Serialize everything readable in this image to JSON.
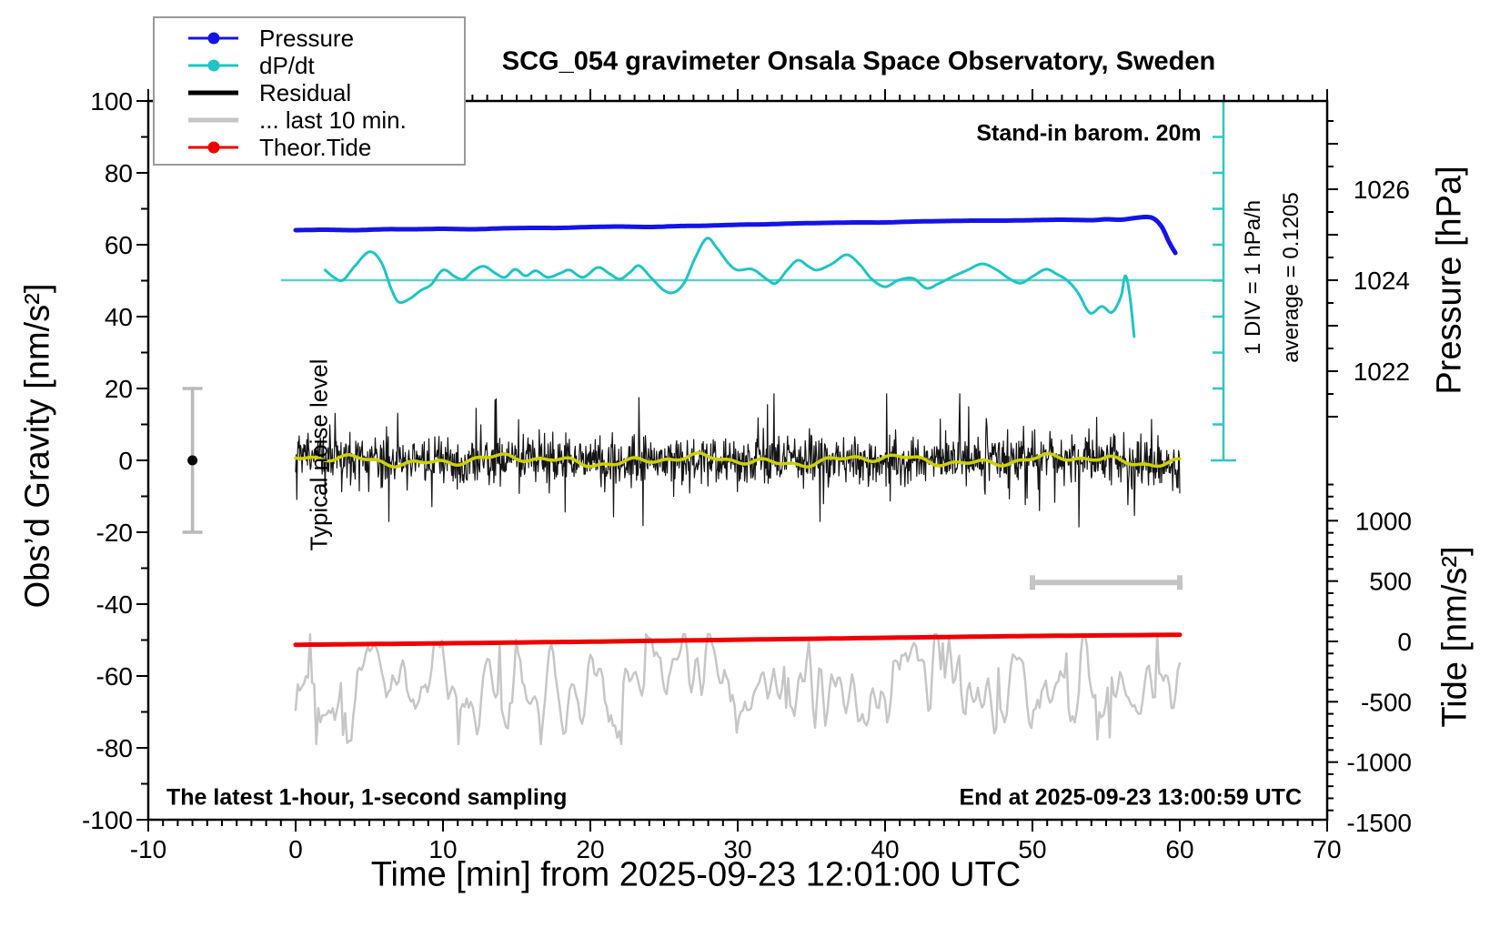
{
  "title": "SCG_054 gravimeter Onsala Space Observatory, Sweden",
  "legend": {
    "items": [
      {
        "label": "Pressure",
        "color": "#1414e6",
        "marker": true,
        "weight": "thin"
      },
      {
        "label": "dP/dt",
        "color": "#1fc4c4",
        "marker": true,
        "weight": "thin"
      },
      {
        "label": "Residual",
        "color": "#000000",
        "marker": false,
        "weight": "thick"
      },
      {
        "label": "... last 10 min.",
        "color": "#c6c6c6",
        "marker": false,
        "weight": "thick"
      },
      {
        "label": "Theor.Tide",
        "color": "#ee0000",
        "marker": true,
        "weight": "thin"
      }
    ]
  },
  "annotations": {
    "standin": "Stand-in barom. 20m",
    "sampling": "The latest 1-hour, 1-second sampling",
    "end": "End at 2025-09-23 13:00:59 UTC",
    "div_note": "1 DIV = 1 hPa/h",
    "average_note": "average = 0.1205",
    "noise_label": "Typical noise level"
  },
  "chart_data": {
    "type": "line",
    "title": "SCG_054 gravimeter Onsala Space Observatory, Sweden",
    "axes": {
      "x": {
        "title": "Time [min] from 2025-09-23 12:01:00 UTC",
        "min": -10,
        "max": 70,
        "major_step": 10,
        "minor_step": 1,
        "labels": [
          -10,
          0,
          10,
          20,
          30,
          40,
          50,
          60,
          70
        ]
      },
      "gravity": {
        "title": "Obs’d Gravity [nm/s²]",
        "min": -100,
        "max": 100,
        "major_step": 20,
        "minor_step": 10,
        "labels": [
          100,
          80,
          60,
          40,
          20,
          0,
          -20,
          -40,
          -60,
          -80,
          -100
        ]
      },
      "pressure": {
        "title": "Pressure [hPa]",
        "labels": [
          1026,
          1024,
          1022
        ],
        "major_step": 1,
        "minor_step": 0.5,
        "tick_min": 1021,
        "tick_max": 1027.5
      },
      "tide": {
        "title": "Tide [nm/s²]",
        "labels": [
          1000,
          500,
          0,
          -500,
          -1000,
          -1500
        ],
        "major_step": 500,
        "minor_step": 100,
        "tick_min": -1500,
        "tick_max": 1400
      },
      "dpdt": {
        "div_equals": "1 hPa/h",
        "average": 0.1205,
        "divisions": 10
      }
    },
    "grid": false,
    "legend_position": "top-left",
    "noise_bar": {
      "t": -7,
      "lo": -20,
      "hi": 20,
      "dot": 0
    },
    "span_bar": {
      "t0": 50,
      "t1": 60,
      "gravity": -34
    },
    "ref_line": {
      "axis": "dpdt",
      "value": 0,
      "t0": -1,
      "t_end_at_ruler": true,
      "color": "#5fcfcb"
    },
    "ruler": {
      "t": 63,
      "color": "#2fc6c6",
      "divisions": 10
    },
    "series": [
      {
        "name": "... last 10 min.",
        "axis": "tide",
        "color": "#c6c6c6",
        "width": 2.5,
        "type": "noise",
        "noise": {
          "n": 430,
          "seed": 99,
          "sigma": 200,
          "center": -370,
          "smooth": 2,
          "spike_prob": 0.05,
          "spike_scale": 1.6,
          "clamp": [
            -850,
            60
          ],
          "t0": 0,
          "t1": 60
        }
      },
      {
        "name": "Theor.Tide",
        "axis": "tide",
        "color": "#ee0000",
        "width": 5,
        "type": "line",
        "points": [
          [
            0,
            -28
          ],
          [
            5,
            -22
          ],
          [
            10,
            -16
          ],
          [
            15,
            -9
          ],
          [
            20,
            -2
          ],
          [
            25,
            6
          ],
          [
            30,
            14
          ],
          [
            35,
            22
          ],
          [
            40,
            30
          ],
          [
            45,
            38
          ],
          [
            50,
            45
          ],
          [
            55,
            50
          ],
          [
            60,
            55
          ]
        ]
      },
      {
        "name": "Residual",
        "axis": "gravity",
        "color": "#141414",
        "width": 1.2,
        "type": "noise",
        "noise": {
          "n": 1500,
          "seed": 12345,
          "sigma": 3.3,
          "center": 0,
          "smooth": 0,
          "spike_prob": 0.06,
          "spike_scale": 2.6,
          "clamp": [
            -18.5,
            18.5
          ],
          "t0": 0,
          "t1": 60
        }
      },
      {
        "name": "Residual smoothed",
        "axis": "gravity",
        "color": "#cdd100",
        "width": 3.5,
        "type": "sines",
        "t0": 0,
        "t1": 60,
        "sines": [
          [
            0.9,
            0.5,
            0.6
          ],
          [
            0.7,
            1.35,
            2.2
          ],
          [
            0.5,
            2.9,
            4.1
          ]
        ]
      },
      {
        "name": "dP/dt",
        "axis": "dpdt",
        "color": "#1fc4c4",
        "width": 3,
        "type": "line",
        "points": [
          [
            2,
            0.28
          ],
          [
            2.6,
            0.08
          ],
          [
            3.2,
            0.0
          ],
          [
            4,
            0.38
          ],
          [
            5,
            0.78
          ],
          [
            5.8,
            0.5
          ],
          [
            6.5,
            -0.25
          ],
          [
            7,
            -0.6
          ],
          [
            7.7,
            -0.52
          ],
          [
            8.5,
            -0.28
          ],
          [
            9.2,
            -0.12
          ],
          [
            10,
            0.28
          ],
          [
            10.8,
            0.1
          ],
          [
            11.4,
            0.03
          ],
          [
            12.1,
            0.27
          ],
          [
            12.8,
            0.38
          ],
          [
            13.6,
            0.18
          ],
          [
            14.2,
            0.08
          ],
          [
            14.9,
            0.3
          ],
          [
            15.6,
            0.12
          ],
          [
            16.3,
            0.26
          ],
          [
            17.1,
            0.08
          ],
          [
            18,
            0.2
          ],
          [
            18.6,
            0.28
          ],
          [
            19.5,
            0.08
          ],
          [
            20.5,
            0.35
          ],
          [
            21.3,
            0.18
          ],
          [
            22,
            0.03
          ],
          [
            22.7,
            0.22
          ],
          [
            23.3,
            0.4
          ],
          [
            24.1,
            0.08
          ],
          [
            25,
            -0.28
          ],
          [
            25.7,
            -0.33
          ],
          [
            26.4,
            -0.05
          ],
          [
            27.1,
            0.6
          ],
          [
            27.9,
            1.15
          ],
          [
            28.6,
            0.88
          ],
          [
            29.4,
            0.45
          ],
          [
            30,
            0.28
          ],
          [
            31,
            0.3
          ],
          [
            32,
            0.02
          ],
          [
            32.6,
            -0.08
          ],
          [
            33.4,
            0.3
          ],
          [
            34.1,
            0.55
          ],
          [
            34.8,
            0.38
          ],
          [
            35.4,
            0.28
          ],
          [
            36.4,
            0.45
          ],
          [
            37.4,
            0.7
          ],
          [
            38.3,
            0.42
          ],
          [
            39.1,
            0.03
          ],
          [
            40,
            -0.18
          ],
          [
            40.9,
            0.0
          ],
          [
            41.9,
            0.05
          ],
          [
            42.8,
            -0.22
          ],
          [
            43.6,
            -0.1
          ],
          [
            44.6,
            0.1
          ],
          [
            45.6,
            0.28
          ],
          [
            46.6,
            0.45
          ],
          [
            47.6,
            0.28
          ],
          [
            48.4,
            0.05
          ],
          [
            49.2,
            -0.08
          ],
          [
            50,
            0.1
          ],
          [
            50.9,
            0.3
          ],
          [
            51.6,
            0.18
          ],
          [
            52.4,
            -0.02
          ],
          [
            53.1,
            -0.35
          ],
          [
            53.9,
            -0.9
          ],
          [
            54.7,
            -0.72
          ],
          [
            55.4,
            -0.88
          ],
          [
            56,
            -0.45
          ],
          [
            56.3,
            0.12
          ],
          [
            56.6,
            -0.4
          ],
          [
            56.9,
            -1.55
          ]
        ]
      },
      {
        "name": "Pressure",
        "axis": "pressure",
        "color": "#1414e6",
        "width": 5,
        "type": "line",
        "points": [
          [
            0,
            1025.1
          ],
          [
            2,
            1025.11
          ],
          [
            4,
            1025.1
          ],
          [
            6,
            1025.12
          ],
          [
            8,
            1025.12
          ],
          [
            10,
            1025.13
          ],
          [
            12,
            1025.12
          ],
          [
            14,
            1025.14
          ],
          [
            16,
            1025.15
          ],
          [
            18,
            1025.15
          ],
          [
            20,
            1025.17
          ],
          [
            22,
            1025.18
          ],
          [
            24,
            1025.17
          ],
          [
            26,
            1025.19
          ],
          [
            28,
            1025.2
          ],
          [
            30,
            1025.22
          ],
          [
            32,
            1025.23
          ],
          [
            34,
            1025.25
          ],
          [
            36,
            1025.26
          ],
          [
            38,
            1025.27
          ],
          [
            40,
            1025.27
          ],
          [
            42,
            1025.29
          ],
          [
            44,
            1025.3
          ],
          [
            46,
            1025.31
          ],
          [
            48,
            1025.31
          ],
          [
            50,
            1025.32
          ],
          [
            52,
            1025.33
          ],
          [
            54,
            1025.32
          ],
          [
            55,
            1025.34
          ],
          [
            56,
            1025.33
          ],
          [
            57,
            1025.37
          ],
          [
            57.8,
            1025.39
          ],
          [
            58.3,
            1025.34
          ],
          [
            58.8,
            1025.16
          ],
          [
            59.3,
            1024.82
          ],
          [
            59.7,
            1024.6
          ]
        ]
      }
    ]
  }
}
